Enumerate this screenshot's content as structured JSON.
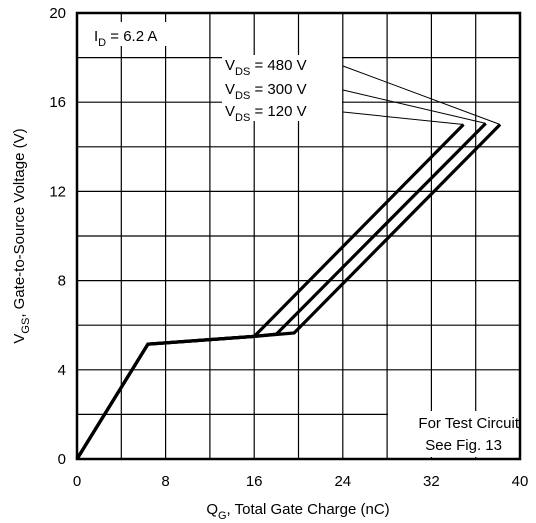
{
  "chart_data": {
    "type": "line",
    "xlabel": {
      "main": "Q",
      "sub": "G",
      "rest": ", Total Gate Charge (nC)"
    },
    "ylabel": {
      "main": "V",
      "sub": "GS",
      "rest": ", Gate-to-Source Voltage (V)"
    },
    "xlim": [
      0,
      40
    ],
    "ylim": [
      0,
      20
    ],
    "xticks": [
      0,
      8,
      16,
      24,
      32,
      40
    ],
    "yticks": [
      0,
      4,
      8,
      12,
      16,
      20
    ],
    "x_gridlines": [
      0,
      4,
      8,
      12,
      16,
      20,
      24,
      28,
      32,
      36,
      40
    ],
    "y_gridlines": [
      0,
      2,
      4,
      6,
      8,
      10,
      12,
      14,
      16,
      18,
      20
    ],
    "grid": true,
    "id_label": {
      "main": "I",
      "sub": "D",
      "rest": " = 6.2 A"
    },
    "note_lines": [
      "For Test Circuit",
      "See Fig. 13"
    ],
    "series": [
      {
        "name": "VDS = 120 V",
        "label": {
          "main": "V",
          "sub": "DS",
          "rest": " = 120 V"
        },
        "points": [
          [
            0,
            0
          ],
          [
            6.4,
            5.15
          ],
          [
            16,
            5.5
          ],
          [
            34.9,
            15.0
          ]
        ]
      },
      {
        "name": "VDS = 300 V",
        "label": {
          "main": "V",
          "sub": "DS",
          "rest": " = 300 V"
        },
        "points": [
          [
            0,
            0
          ],
          [
            6.4,
            5.15
          ],
          [
            16,
            5.5
          ],
          [
            18.0,
            5.6
          ],
          [
            36.9,
            15.05
          ]
        ]
      },
      {
        "name": "VDS = 480 V",
        "label": {
          "main": "V",
          "sub": "DS",
          "rest": " = 480 V"
        },
        "points": [
          [
            0,
            0
          ],
          [
            6.4,
            5.15
          ],
          [
            16,
            5.5
          ],
          [
            19.6,
            5.65
          ],
          [
            38.2,
            15.0
          ]
        ]
      }
    ],
    "legend_order": [
      "VDS = 480 V",
      "VDS = 300 V",
      "VDS = 120 V"
    ],
    "legend_placement": "upper-center, leader lines to curve ends"
  }
}
